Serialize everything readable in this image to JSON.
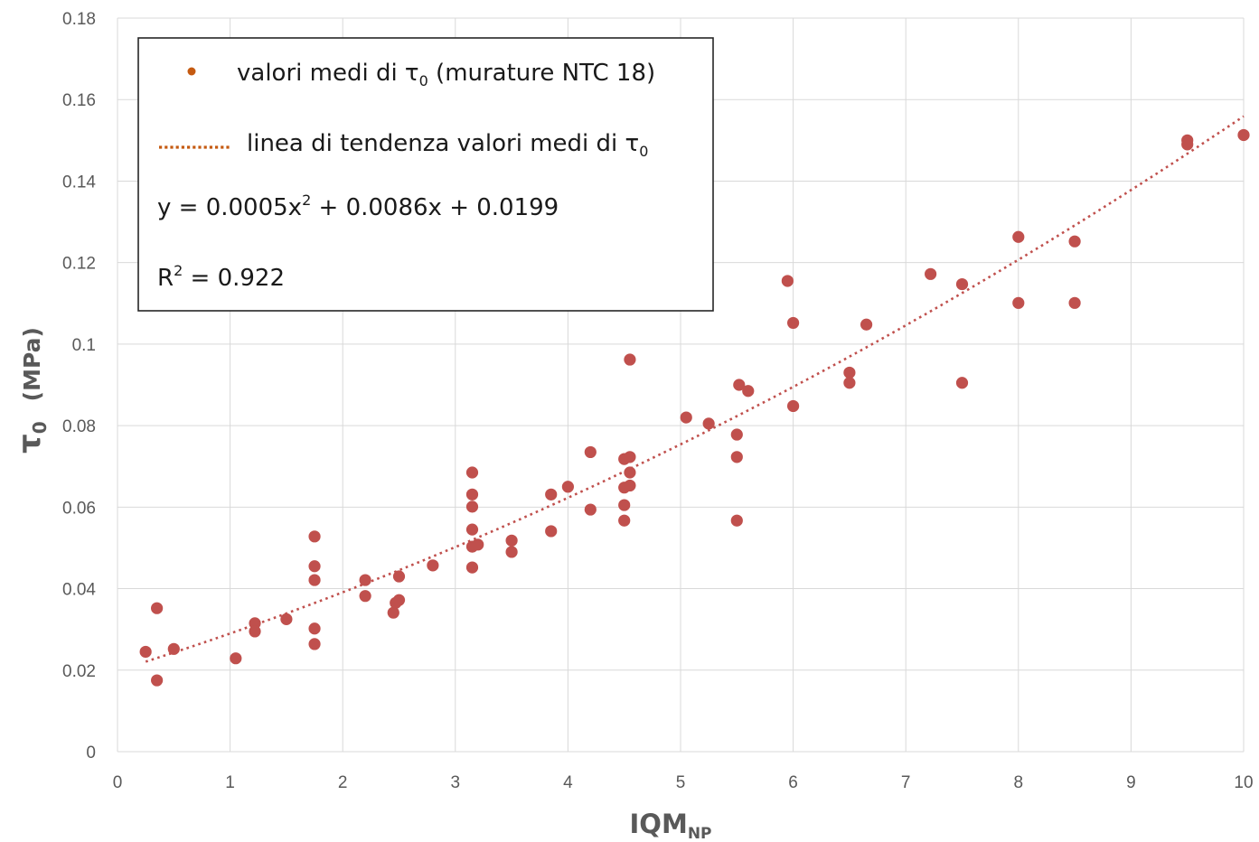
{
  "chart_data": {
    "type": "scatter",
    "title": "",
    "xlabel": {
      "main": "IQM",
      "sub": "NP"
    },
    "ylabel": {
      "symbol": "τ",
      "sub": "0",
      "unit": "(MPa)"
    },
    "xlim": [
      0,
      10
    ],
    "ylim": [
      0,
      0.18
    ],
    "x_ticks": [
      "0",
      "1",
      "2",
      "3",
      "4",
      "5",
      "6",
      "7",
      "8",
      "9",
      "10"
    ],
    "y_ticks": [
      "0",
      "0.02",
      "0.04",
      "0.06",
      "0.08",
      "0.1",
      "0.12",
      "0.14",
      "0.16",
      "0.18"
    ],
    "grid": true,
    "legend_placement": "top-left",
    "colors": {
      "points": "#c0504d",
      "legend_marker": "#c55a11",
      "trendline": "#c0504d",
      "legend_trend": "#c55a11",
      "grid": "#d9d9d9"
    },
    "legend": {
      "series_label": {
        "pre": "valori medi di τ",
        "sub": "0",
        "post": " (murature NTC 18)"
      },
      "trend_label": {
        "pre": "linea di tendenza valori medi di τ",
        "sub": "0"
      },
      "equation": {
        "pre": "y = 0.0005x",
        "sup": "2",
        "post": " + 0.0086x + 0.0199"
      },
      "r2": {
        "pre": "R",
        "sup": "2",
        "post": " = 0.922"
      }
    },
    "trendline": {
      "type": "polynomial",
      "a": 0.0005,
      "b": 0.0086,
      "c": 0.0199,
      "x_range": [
        0.25,
        10
      ]
    },
    "series": [
      {
        "points": [
          [
            0.25,
            0.0245
          ],
          [
            0.35,
            0.0175
          ],
          [
            0.35,
            0.0352
          ],
          [
            0.5,
            0.0252
          ],
          [
            1.05,
            0.0229
          ],
          [
            1.22,
            0.0315
          ],
          [
            1.22,
            0.0295
          ],
          [
            1.5,
            0.0325
          ],
          [
            1.75,
            0.0528
          ],
          [
            1.75,
            0.0455
          ],
          [
            1.75,
            0.0421
          ],
          [
            1.75,
            0.0302
          ],
          [
            1.75,
            0.0264
          ],
          [
            2.2,
            0.0421
          ],
          [
            2.2,
            0.0382
          ],
          [
            2.45,
            0.0341
          ],
          [
            2.47,
            0.0365
          ],
          [
            2.5,
            0.0372
          ],
          [
            2.5,
            0.043
          ],
          [
            2.8,
            0.0457
          ],
          [
            3.15,
            0.0685
          ],
          [
            3.15,
            0.0631
          ],
          [
            3.15,
            0.0601
          ],
          [
            3.15,
            0.0545
          ],
          [
            3.15,
            0.0503
          ],
          [
            3.2,
            0.0508
          ],
          [
            3.15,
            0.0452
          ],
          [
            3.5,
            0.0518
          ],
          [
            3.5,
            0.049
          ],
          [
            3.85,
            0.0631
          ],
          [
            3.85,
            0.0541
          ],
          [
            4.0,
            0.065
          ],
          [
            4.2,
            0.0735
          ],
          [
            4.2,
            0.0594
          ],
          [
            4.5,
            0.0718
          ],
          [
            4.55,
            0.0723
          ],
          [
            4.55,
            0.0685
          ],
          [
            4.5,
            0.0648
          ],
          [
            4.55,
            0.0653
          ],
          [
            4.5,
            0.0605
          ],
          [
            4.5,
            0.0567
          ],
          [
            4.55,
            0.0962
          ],
          [
            5.05,
            0.082
          ],
          [
            5.25,
            0.0805
          ],
          [
            5.5,
            0.0778
          ],
          [
            5.5,
            0.0723
          ],
          [
            5.5,
            0.0567
          ],
          [
            5.52,
            0.09
          ],
          [
            5.6,
            0.0885
          ],
          [
            5.95,
            0.1155
          ],
          [
            6.0,
            0.1052
          ],
          [
            6.0,
            0.0848
          ],
          [
            6.5,
            0.093
          ],
          [
            6.5,
            0.0905
          ],
          [
            6.65,
            0.1048
          ],
          [
            7.22,
            0.1172
          ],
          [
            7.5,
            0.1147
          ],
          [
            7.5,
            0.0905
          ],
          [
            8.0,
            0.1263
          ],
          [
            8.0,
            0.1101
          ],
          [
            8.5,
            0.1252
          ],
          [
            8.5,
            0.1101
          ],
          [
            9.5,
            0.15
          ],
          [
            9.5,
            0.149
          ],
          [
            10.0,
            0.1513
          ]
        ]
      }
    ]
  }
}
